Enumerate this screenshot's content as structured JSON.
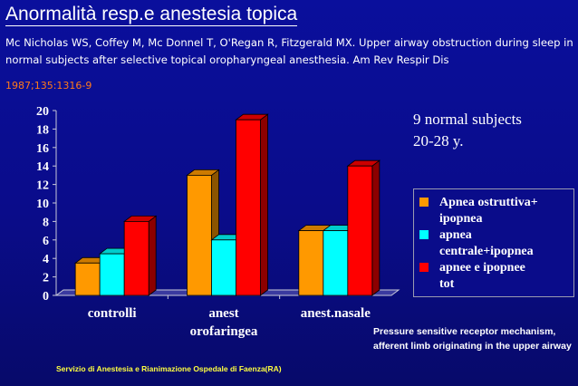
{
  "slide": {
    "title": "Anormalità resp.e anestesia topica",
    "reference": "Mc Nicholas WS, Coffey M, Mc Donnel T, O'Regan R, Fitzgerald MX. Upper airway obstruction during sleep in normal subjects after selective topical oropharyngeal anesthesia. Am Rev Respir Dis",
    "reference_cont": "1987;135:1316-9",
    "note_subjects": "9 normal subjects",
    "note_age": "20-28 y.",
    "note_mechanism": "Pressure sensitive receptor mechanism, afferent limb originating in the upper airway",
    "footer": "Servizio di Anestesia e Rianimazione Ospedale di Faenza(RA)"
  },
  "colors": {
    "background": "#0a0c8a",
    "series": [
      "#ff9900",
      "#00ffff",
      "#ff0000"
    ]
  },
  "chart_data": {
    "type": "bar",
    "categories": [
      "controlli",
      "anest orofaringea",
      "anest.nasale"
    ],
    "category_lines": [
      [
        "controlli"
      ],
      [
        "anest",
        "orofaringea"
      ],
      [
        "anest.nasale"
      ]
    ],
    "series": [
      {
        "name": "Apnea ostruttiva+ ipopnea",
        "values": [
          3.5,
          13,
          7
        ]
      },
      {
        "name": "apnea centrale+ipopnea",
        "values": [
          4.5,
          6,
          7
        ]
      },
      {
        "name": "apnee e ipopnee tot",
        "values": [
          8,
          19,
          14
        ]
      }
    ],
    "legend_lines": [
      [
        "Apnea ostruttiva+",
        "ipopnea"
      ],
      [
        "apnea",
        "centrale+ipopnea"
      ],
      [
        "apnee e ipopnee",
        "tot"
      ]
    ],
    "ylim": [
      0,
      20
    ],
    "yticks": [
      0,
      2,
      4,
      6,
      8,
      10,
      12,
      14,
      16,
      18,
      20
    ],
    "xlabel": "",
    "ylabel": "",
    "grid": false,
    "legend_position": "right"
  }
}
